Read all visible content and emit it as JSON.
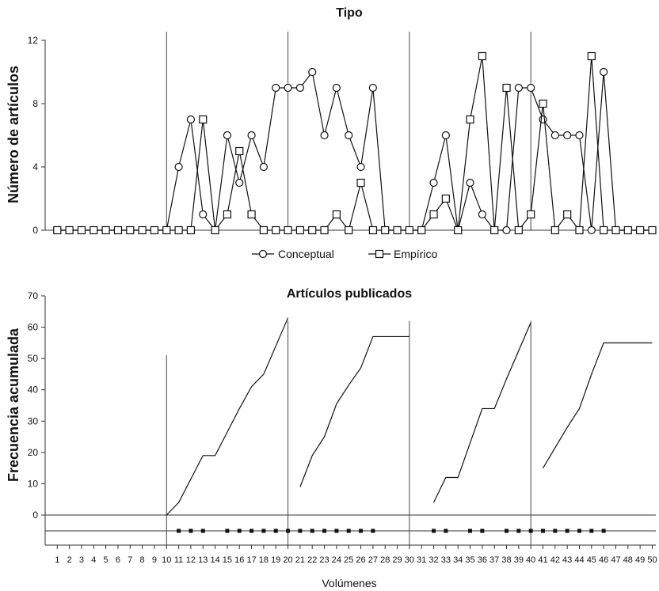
{
  "chart_data": [
    {
      "type": "line",
      "title": "Tipo",
      "ylabel": "Número de artículos",
      "xlabel": "",
      "ylim": [
        0,
        12
      ],
      "yticks": [
        0,
        4,
        8,
        12
      ],
      "xlim": [
        1,
        50
      ],
      "period_dividers": [
        10,
        20,
        30,
        40
      ],
      "legend_position": "bottom-center",
      "grid": false,
      "series": [
        {
          "name": "Conceptual",
          "marker": "circle",
          "x": [
            1,
            2,
            3,
            4,
            5,
            6,
            7,
            8,
            9,
            10,
            11,
            12,
            13,
            14,
            15,
            16,
            17,
            18,
            19,
            20,
            21,
            22,
            23,
            24,
            25,
            26,
            27,
            28,
            29,
            30,
            31,
            32,
            33,
            34,
            35,
            36,
            37,
            38,
            39,
            40,
            41,
            42,
            43,
            44,
            45,
            46,
            47,
            48,
            49,
            50
          ],
          "values": [
            0,
            0,
            0,
            0,
            0,
            0,
            0,
            0,
            0,
            0,
            4,
            7,
            1,
            0,
            6,
            3,
            6,
            4,
            9,
            9,
            9,
            10,
            6,
            9,
            6,
            4,
            9,
            0,
            0,
            0,
            0,
            3,
            6,
            0,
            3,
            1,
            0,
            0,
            9,
            9,
            7,
            6,
            6,
            6,
            0,
            10,
            0,
            0,
            0,
            0
          ]
        },
        {
          "name": "Empírico",
          "marker": "square",
          "x": [
            1,
            2,
            3,
            4,
            5,
            6,
            7,
            8,
            9,
            10,
            11,
            12,
            13,
            14,
            15,
            16,
            17,
            18,
            19,
            20,
            21,
            22,
            23,
            24,
            25,
            26,
            27,
            28,
            29,
            30,
            31,
            32,
            33,
            34,
            35,
            36,
            37,
            38,
            39,
            40,
            41,
            42,
            43,
            44,
            45,
            46,
            47,
            48,
            49,
            50
          ],
          "values": [
            0,
            0,
            0,
            0,
            0,
            0,
            0,
            0,
            0,
            0,
            0,
            0,
            7,
            0,
            1,
            5,
            1,
            0,
            0,
            0,
            0,
            0,
            0,
            1,
            0,
            3,
            0,
            0,
            0,
            0,
            0,
            1,
            2,
            0,
            7,
            11,
            0,
            9,
            0,
            1,
            8,
            0,
            1,
            0,
            11,
            0,
            0,
            0,
            0,
            0
          ]
        }
      ]
    },
    {
      "type": "line",
      "title": "Artículos publicados",
      "ylabel": "Frecuencia acumulada",
      "xlabel": "Volúmenes",
      "ylim": [
        0,
        70
      ],
      "yticks": [
        0,
        10,
        20,
        30,
        40,
        50,
        60,
        70
      ],
      "xlim": [
        1,
        50
      ],
      "categories": [
        "1",
        "2",
        "3",
        "4",
        "5",
        "6",
        "7",
        "8",
        "9",
        "10",
        "11",
        "12",
        "13",
        "14",
        "15",
        "16",
        "17",
        "18",
        "19",
        "20",
        "21",
        "22",
        "23",
        "24",
        "25",
        "26",
        "27",
        "28",
        "29",
        "30",
        "31",
        "32",
        "33",
        "34",
        "35",
        "36",
        "37",
        "38",
        "39",
        "40",
        "41",
        "42",
        "43",
        "44",
        "45",
        "46",
        "47",
        "48",
        "49",
        "50"
      ],
      "period_dividers": [
        {
          "x": 10,
          "top": 51
        },
        {
          "x": 20,
          "top": 62
        },
        {
          "x": 30,
          "top": 62
        },
        {
          "x": 40,
          "top": 62
        }
      ],
      "grid": false,
      "series": [
        {
          "x": [
            10,
            11,
            12,
            13,
            14,
            15,
            16,
            17,
            18,
            19,
            20
          ],
          "values": [
            0,
            4,
            11.5,
            19,
            19,
            26.5,
            34,
            41,
            45,
            54,
            63
          ]
        },
        {
          "x": [
            21,
            22,
            23,
            24,
            25,
            26,
            27,
            28,
            29,
            30
          ],
          "values": [
            9,
            19,
            25,
            35.5,
            41.5,
            47,
            57,
            57,
            57,
            57
          ]
        },
        {
          "x": [
            32,
            33,
            34,
            35,
            36,
            37,
            38,
            39,
            40
          ],
          "values": [
            4,
            12,
            12,
            23,
            34,
            34,
            43.5,
            52.5,
            61.5
          ]
        },
        {
          "x": [
            41,
            42,
            43,
            44,
            45,
            46,
            47,
            48,
            49,
            50
          ],
          "values": [
            15,
            21.5,
            28,
            34,
            45,
            55,
            55,
            55,
            55,
            55
          ]
        }
      ],
      "event_marks_x": [
        11,
        12,
        13,
        15,
        16,
        17,
        18,
        19,
        20,
        21,
        22,
        23,
        24,
        25,
        26,
        27,
        32,
        33,
        35,
        36,
        38,
        39,
        40,
        41,
        42,
        43,
        44,
        45,
        46
      ]
    }
  ]
}
